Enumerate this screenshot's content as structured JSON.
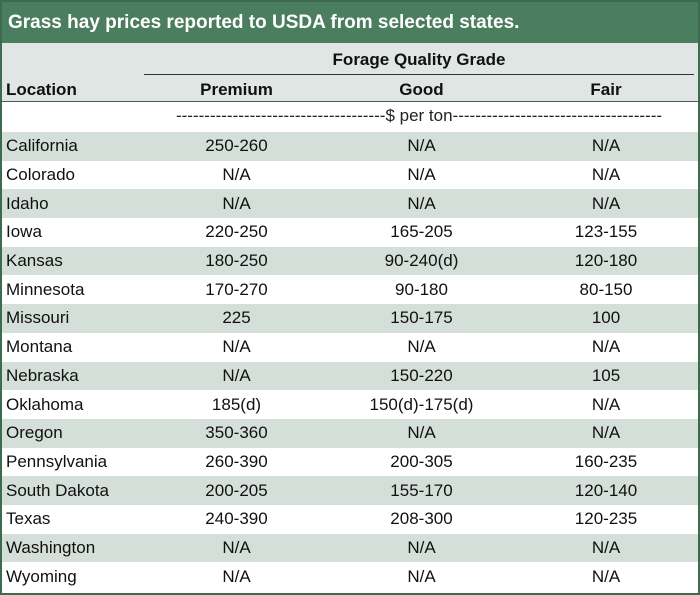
{
  "title": "Grass hay prices reported to USDA from selected states.",
  "header": {
    "group": "Forage Quality Grade",
    "location": "Location",
    "columns": [
      "Premium",
      "Good",
      "Fair"
    ]
  },
  "units": "-------------------------------------$ per ton-------------------------------------",
  "rows": [
    {
      "location": "California",
      "premium": "250-260",
      "good": "N/A",
      "fair": "N/A"
    },
    {
      "location": "Colorado",
      "premium": "N/A",
      "good": "N/A",
      "fair": "N/A"
    },
    {
      "location": "Idaho",
      "premium": "N/A",
      "good": "N/A",
      "fair": "N/A"
    },
    {
      "location": "Iowa",
      "premium": "220-250",
      "good": "165-205",
      "fair": "123-155"
    },
    {
      "location": "Kansas",
      "premium": "180-250",
      "good": "90-240(d)",
      "fair": "120-180"
    },
    {
      "location": "Minnesota",
      "premium": "170-270",
      "good": "90-180",
      "fair": "80-150"
    },
    {
      "location": "Missouri",
      "premium": "225",
      "good": "150-175",
      "fair": "100"
    },
    {
      "location": "Montana",
      "premium": "N/A",
      "good": "N/A",
      "fair": "N/A"
    },
    {
      "location": "Nebraska",
      "premium": "N/A",
      "good": "150-220",
      "fair": "105"
    },
    {
      "location": "Oklahoma",
      "premium": "185(d)",
      "good": "150(d)-175(d)",
      "fair": "N/A"
    },
    {
      "location": "Oregon",
      "premium": "350-360",
      "good": "N/A",
      "fair": "N/A"
    },
    {
      "location": "Pennsylvania",
      "premium": "260-390",
      "good": "200-305",
      "fair": "160-235"
    },
    {
      "location": "South Dakota",
      "premium": "200-205",
      "good": "155-170",
      "fair": "120-140"
    },
    {
      "location": "Texas",
      "premium": "240-390",
      "good": "208-300",
      "fair": "120-235"
    },
    {
      "location": "Washington",
      "premium": "N/A",
      "good": "N/A",
      "fair": "N/A"
    },
    {
      "location": "Wyoming",
      "premium": "N/A",
      "good": "N/A",
      "fair": "N/A"
    }
  ],
  "colors": {
    "title_bg": "#4b7d5f",
    "header_bg": "#dfe6e3",
    "shaded_row": "#d3dfd8",
    "border": "#3d6b4f"
  }
}
